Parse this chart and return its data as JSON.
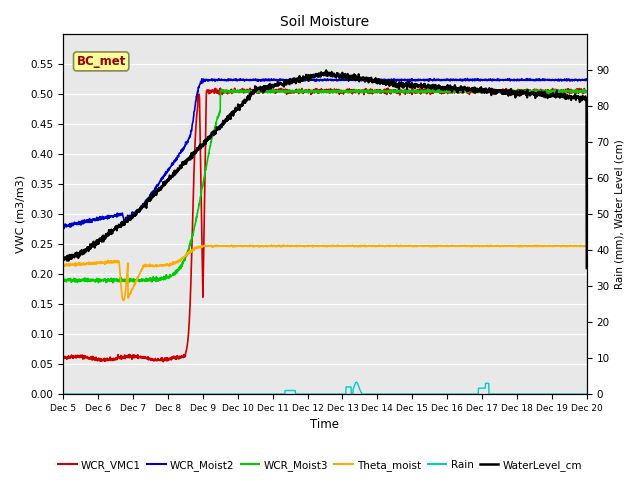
{
  "title": "Soil Moisture",
  "xlabel": "Time",
  "ylabel_left": "VWC (m3/m3)",
  "ylabel_right": "Rain (mm), Water Level (cm)",
  "ylim_left": [
    0.0,
    0.6
  ],
  "ylim_right": [
    0,
    100
  ],
  "background_color": "#e8e8e8",
  "annotation_label": "BC_met",
  "x_tick_labels": [
    "Dec 5",
    "Dec 6",
    "Dec 7",
    "Dec 8",
    "Dec 9",
    "Dec 10",
    "Dec 11",
    "Dec 12",
    "Dec 13",
    "Dec 14",
    "Dec 15",
    "Dec 16",
    "Dec 17",
    "Dec 18",
    "Dec 19",
    "Dec 20"
  ],
  "yticks_left": [
    0.0,
    0.05,
    0.1,
    0.15,
    0.2,
    0.25,
    0.3,
    0.35,
    0.4,
    0.45,
    0.5,
    0.55
  ],
  "yticks_right": [
    0,
    10,
    20,
    30,
    40,
    50,
    60,
    70,
    80,
    90
  ],
  "series": {
    "WCR_VMC1": {
      "color": "#cc0000",
      "lw": 1.2
    },
    "WCR_Moist2": {
      "color": "#0000cc",
      "lw": 1.2
    },
    "WCR_Moist3": {
      "color": "#00cc00",
      "lw": 1.2
    },
    "Theta_moist": {
      "color": "#ffaa00",
      "lw": 1.2
    },
    "Rain": {
      "color": "#00cccc",
      "lw": 1.0
    },
    "WaterLevel_cm": {
      "color": "#000000",
      "lw": 1.5
    }
  }
}
